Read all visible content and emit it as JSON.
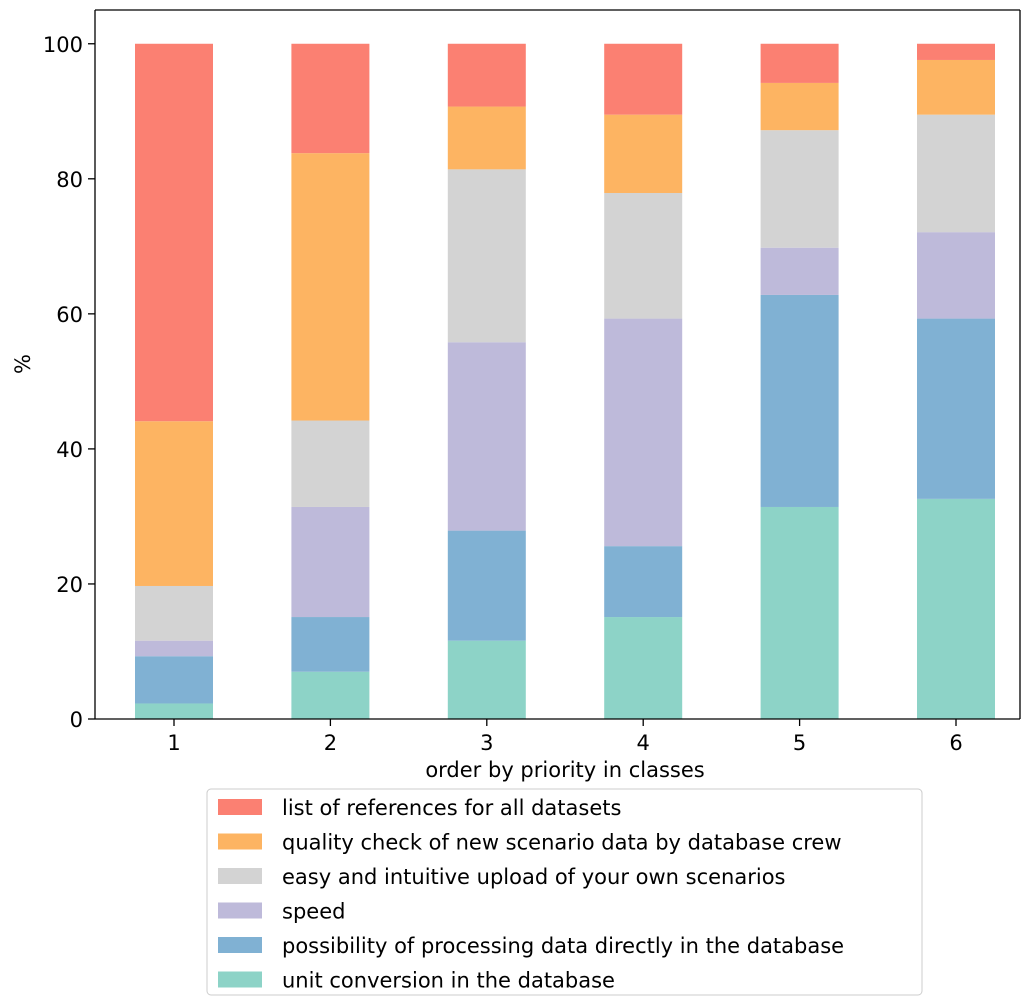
{
  "chart_data": {
    "type": "bar",
    "stacked": true,
    "categories": [
      "1",
      "2",
      "3",
      "4",
      "5",
      "6"
    ],
    "xlabel": "order by priority in classes",
    "ylabel": "%",
    "ylim": [
      0,
      105
    ],
    "yticks": [
      0,
      20,
      40,
      60,
      80,
      100
    ],
    "grid": false,
    "legend_position": "bottom",
    "series": [
      {
        "name": "unit conversion in the database",
        "color": "#8dd3c7",
        "values": [
          2.3,
          7.0,
          11.6,
          15.1,
          31.4,
          32.6
        ]
      },
      {
        "name": "possibility of processing data directly in the database",
        "color": "#80b1d3",
        "values": [
          7.0,
          8.1,
          16.3,
          10.5,
          31.4,
          26.7
        ]
      },
      {
        "name": "speed",
        "color": "#bebada",
        "values": [
          2.3,
          16.3,
          27.9,
          33.7,
          7.0,
          12.8
        ]
      },
      {
        "name": "easy and intuitive upload of your own scenarios",
        "color": "#d3d3d3",
        "values": [
          8.1,
          12.8,
          25.6,
          18.6,
          17.4,
          17.4
        ]
      },
      {
        "name": "quality check of new scenario data by database crew",
        "color": "#fdb462",
        "values": [
          24.4,
          39.6,
          9.3,
          11.6,
          7.0,
          8.1
        ]
      },
      {
        "name": "list of references for all datasets",
        "color": "#fb8072",
        "values": [
          55.9,
          16.2,
          9.3,
          10.5,
          5.8,
          2.4
        ]
      }
    ]
  }
}
